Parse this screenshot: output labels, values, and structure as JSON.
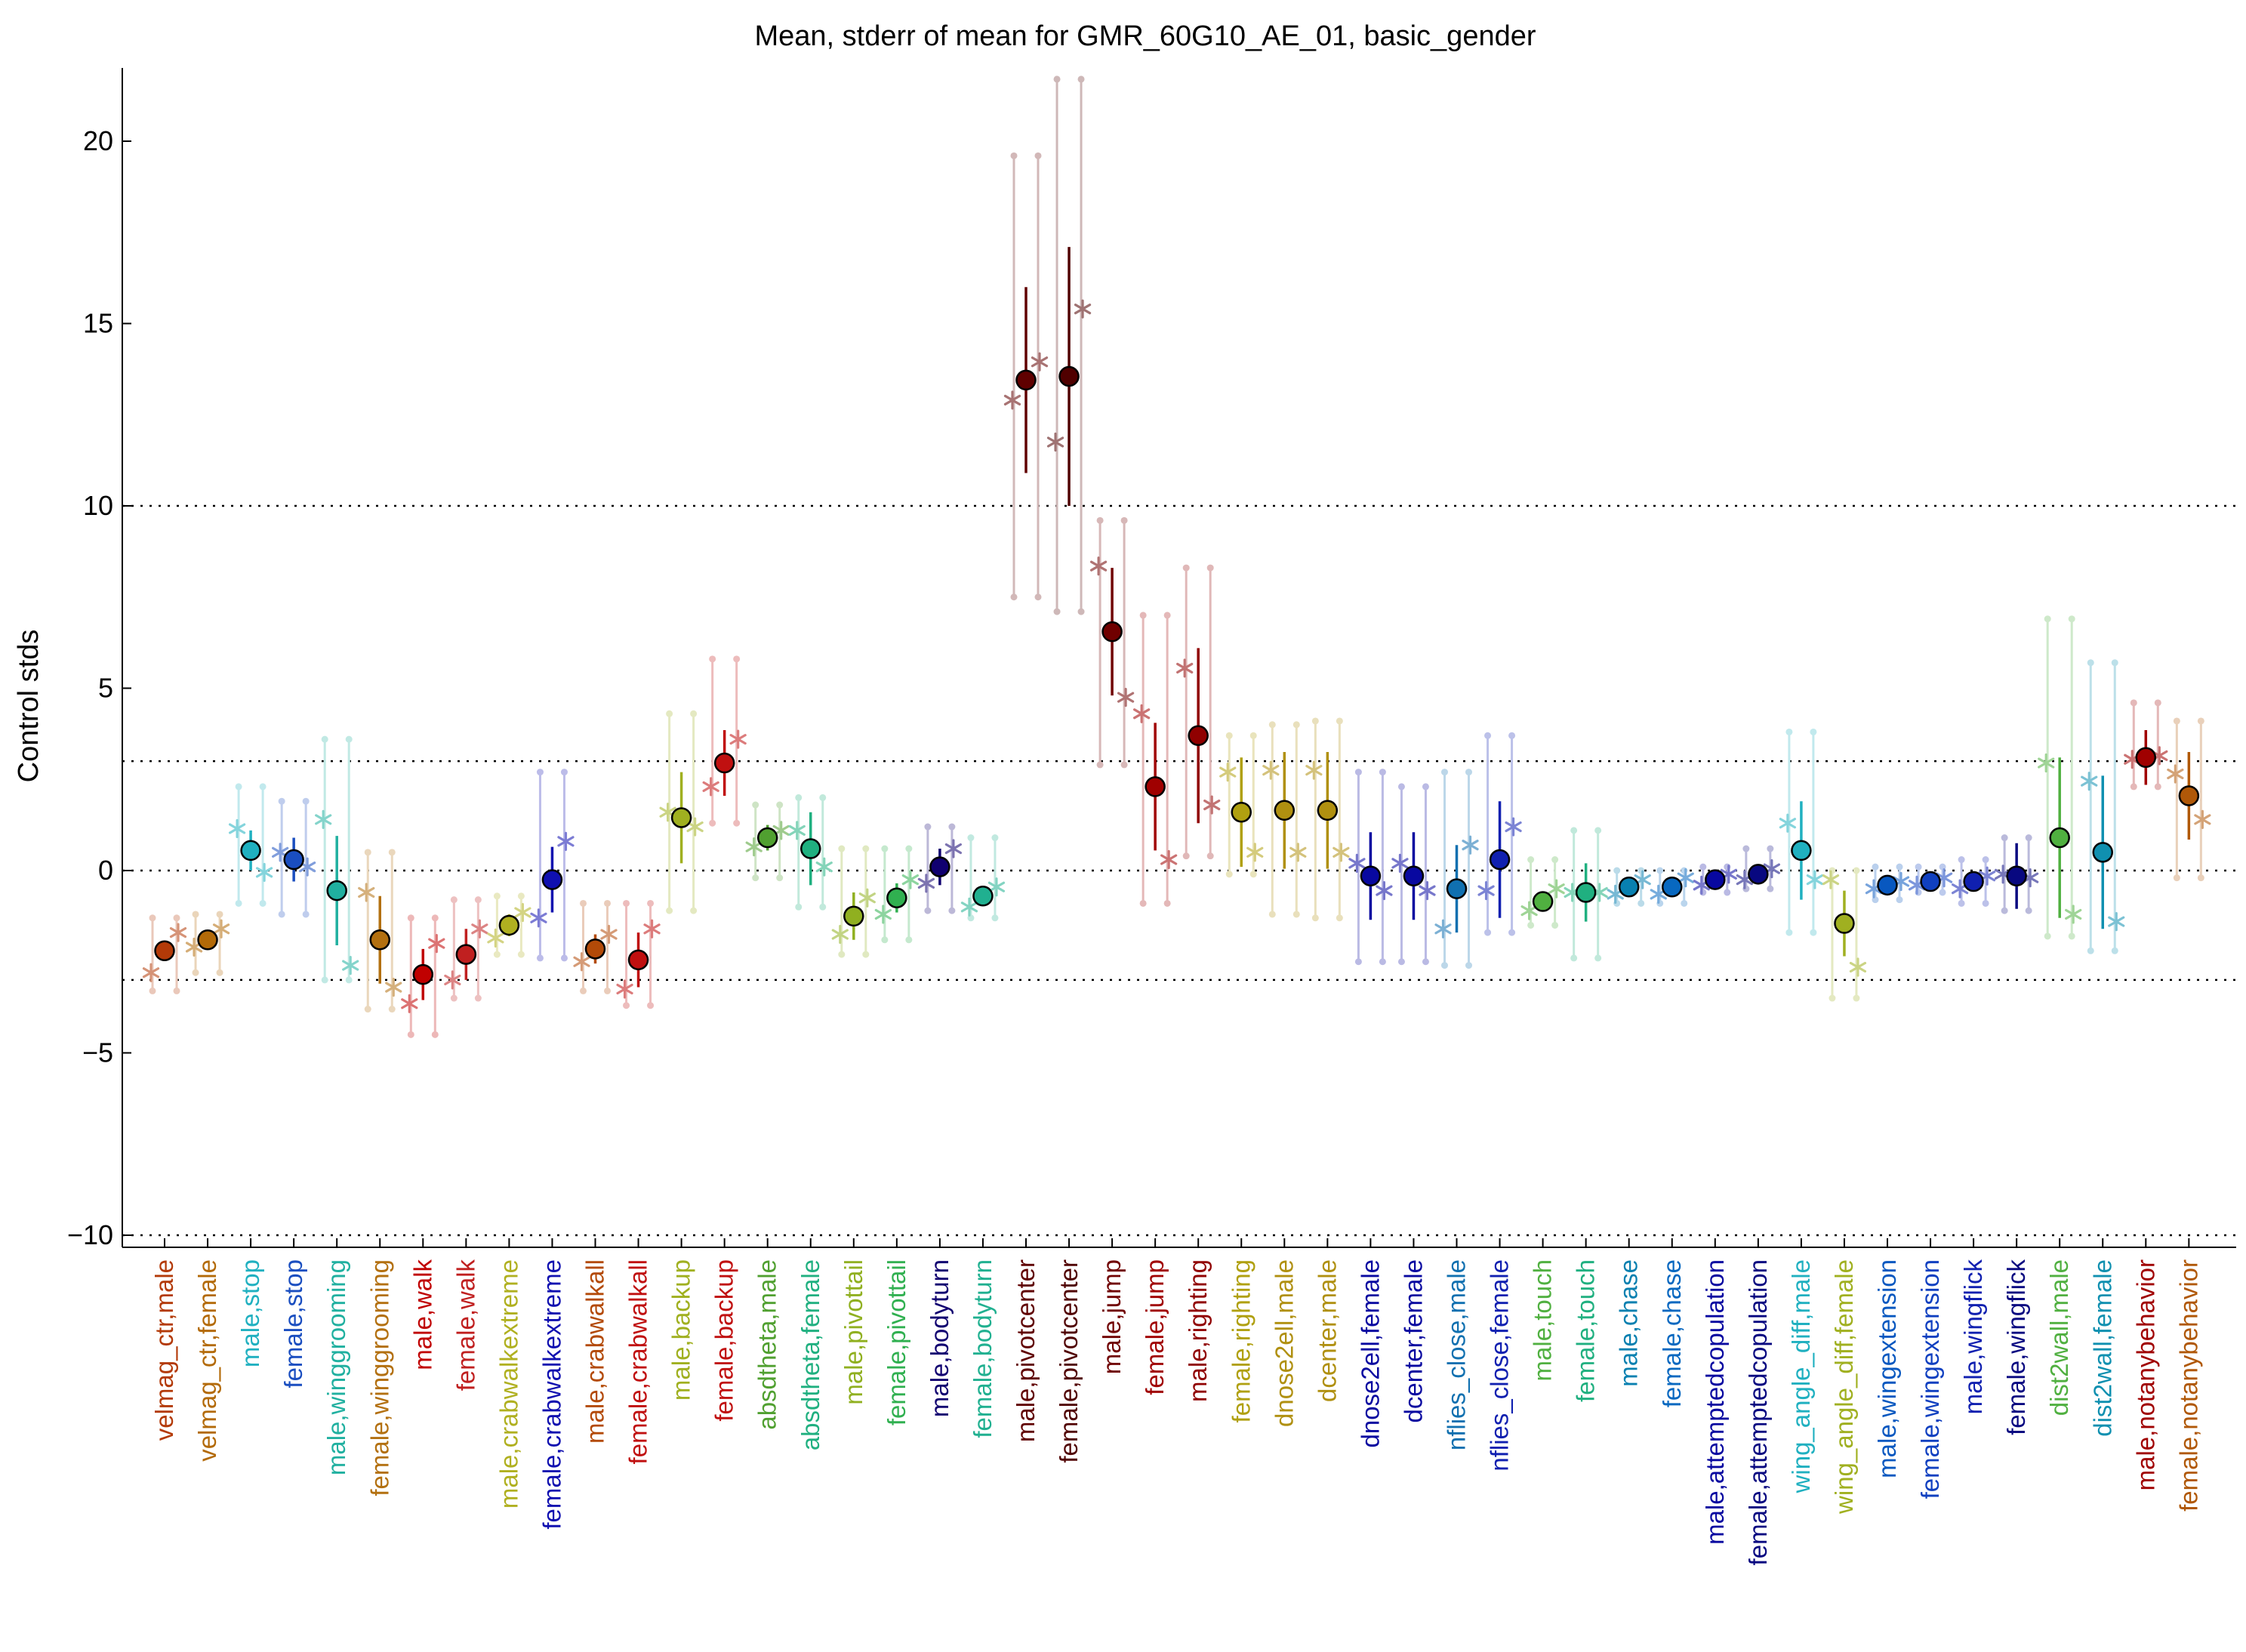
{
  "chart_data": {
    "type": "scatter",
    "title": "Mean, stderr of mean for GMR_60G10_AE_01, basic_gender",
    "xlabel": "",
    "ylabel": "Control stds",
    "ylim": [
      -10.3,
      22
    ],
    "yticks": [
      -10,
      -5,
      0,
      5,
      10,
      15,
      20
    ],
    "ytick_labels": [
      "−10",
      "−5",
      "0",
      "5",
      "10",
      "15",
      "20"
    ],
    "reference_lines": [
      -10,
      -3,
      0,
      3,
      10
    ],
    "grid": false,
    "legend": "none",
    "categories": [
      {
        "label": "velmag_ctr,male",
        "color": "#b33a08",
        "mean": -2.2,
        "sem": 0.25,
        "stars": [
          -2.8,
          -1.7
        ],
        "range": [
          -3.3,
          -1.3
        ]
      },
      {
        "label": "velmag_ctr,female",
        "color": "#b36a08",
        "mean": -1.9,
        "sem": 0.2,
        "stars": [
          -2.1,
          -1.6
        ],
        "range": [
          -2.8,
          -1.2
        ]
      },
      {
        "label": "male,stop",
        "color": "#20b0c0",
        "mean": 0.55,
        "sem": 0.55,
        "stars": [
          1.15,
          -0.05
        ],
        "range": [
          -0.9,
          2.3
        ]
      },
      {
        "label": "female,stop",
        "color": "#1a4ec0",
        "mean": 0.3,
        "sem": 0.6,
        "stars": [
          0.5,
          0.1
        ],
        "range": [
          -1.2,
          1.9
        ]
      },
      {
        "label": "male,winggrooming",
        "color": "#20b0a0",
        "mean": -0.55,
        "sem": 1.5,
        "stars": [
          1.4,
          -2.6
        ],
        "range": [
          -3.0,
          3.6
        ]
      },
      {
        "label": "female,winggrooming",
        "color": "#b37010",
        "mean": -1.9,
        "sem": 1.2,
        "stars": [
          -0.6,
          -3.2
        ],
        "range": [
          -3.8,
          0.5
        ]
      },
      {
        "label": "male,walk",
        "color": "#c00000",
        "mean": -2.85,
        "sem": 0.7,
        "stars": [
          -3.65,
          -2.0
        ],
        "range": [
          -4.5,
          -1.3
        ]
      },
      {
        "label": "female,walk",
        "color": "#c02020",
        "mean": -2.3,
        "sem": 0.7,
        "stars": [
          -3.0,
          -1.6
        ],
        "range": [
          -3.5,
          -0.8
        ]
      },
      {
        "label": "male,crabwalkextreme",
        "color": "#b0b020",
        "mean": -1.5,
        "sem": 0.3,
        "stars": [
          -1.85,
          -1.15
        ],
        "range": [
          -2.3,
          -0.7
        ]
      },
      {
        "label": "female,crabwalkextreme",
        "color": "#1010b0",
        "mean": -0.25,
        "sem": 0.9,
        "stars": [
          -1.3,
          0.8
        ],
        "range": [
          -2.4,
          2.7
        ]
      },
      {
        "label": "male,crabwalkall",
        "color": "#b34a08",
        "mean": -2.15,
        "sem": 0.4,
        "stars": [
          -2.5,
          -1.75
        ],
        "range": [
          -3.3,
          -0.9
        ]
      },
      {
        "label": "female,crabwalkall",
        "color": "#c01010",
        "mean": -2.45,
        "sem": 0.75,
        "stars": [
          -3.25,
          -1.6
        ],
        "range": [
          -3.7,
          -0.9
        ]
      },
      {
        "label": "male,backup",
        "color": "#a0b020",
        "mean": 1.45,
        "sem": 1.25,
        "stars": [
          1.6,
          1.2
        ],
        "range": [
          -1.1,
          4.3
        ]
      },
      {
        "label": "female,backup",
        "color": "#c01010",
        "mean": 2.95,
        "sem": 0.9,
        "stars": [
          2.3,
          3.6
        ],
        "range": [
          1.3,
          5.8
        ]
      },
      {
        "label": "absdtheta,male",
        "color": "#50a030",
        "mean": 0.9,
        "sem": 0.35,
        "stars": [
          0.65,
          1.1
        ],
        "range": [
          -0.2,
          1.8
        ]
      },
      {
        "label": "absdtheta,female",
        "color": "#20b080",
        "mean": 0.6,
        "sem": 1.0,
        "stars": [
          1.1,
          0.1
        ],
        "range": [
          -1.0,
          2.0
        ]
      },
      {
        "label": "male,pivottail",
        "color": "#90b020",
        "mean": -1.25,
        "sem": 0.65,
        "stars": [
          -1.75,
          -0.75
        ],
        "range": [
          -2.3,
          0.6
        ]
      },
      {
        "label": "female,pivottail",
        "color": "#30b050",
        "mean": -0.75,
        "sem": 0.4,
        "stars": [
          -1.2,
          -0.25
        ],
        "range": [
          -1.9,
          0.6
        ]
      },
      {
        "label": "male,bodyturn",
        "color": "#100070",
        "mean": 0.1,
        "sem": 0.5,
        "stars": [
          -0.35,
          0.6
        ],
        "range": [
          -1.1,
          1.2
        ]
      },
      {
        "label": "female,bodyturn",
        "color": "#20b090",
        "mean": -0.7,
        "sem": 0.25,
        "stars": [
          -1.0,
          -0.45
        ],
        "range": [
          -1.3,
          0.9
        ]
      },
      {
        "label": "male,pivotcenter",
        "color": "#600000",
        "mean": 13.45,
        "sem": 2.55,
        "stars": [
          12.9,
          13.95
        ],
        "range": [
          7.5,
          19.6
        ]
      },
      {
        "label": "female,pivotcenter",
        "color": "#500000",
        "mean": 13.55,
        "sem": 3.55,
        "stars": [
          11.75,
          15.4
        ],
        "range": [
          7.1,
          21.7
        ]
      },
      {
        "label": "male,jump",
        "color": "#700000",
        "mean": 6.55,
        "sem": 1.75,
        "stars": [
          8.35,
          4.75
        ],
        "range": [
          2.9,
          9.6
        ]
      },
      {
        "label": "female,jump",
        "color": "#a00000",
        "mean": 2.3,
        "sem": 1.75,
        "stars": [
          4.3,
          0.3
        ],
        "range": [
          -0.9,
          7.0
        ]
      },
      {
        "label": "male,righting",
        "color": "#900000",
        "mean": 3.7,
        "sem": 2.4,
        "stars": [
          5.55,
          1.8
        ],
        "range": [
          0.4,
          8.3
        ]
      },
      {
        "label": "female,righting",
        "color": "#b0a010",
        "mean": 1.6,
        "sem": 1.5,
        "stars": [
          2.7,
          0.5
        ],
        "range": [
          -0.1,
          3.7
        ]
      },
      {
        "label": "dnose2ell,male",
        "color": "#b09010",
        "mean": 1.65,
        "sem": 1.6,
        "stars": [
          2.75,
          0.5
        ],
        "range": [
          -1.2,
          4.0
        ]
      },
      {
        "label": "dcenter,male",
        "color": "#b09010",
        "mean": 1.65,
        "sem": 1.6,
        "stars": [
          2.75,
          0.5
        ],
        "range": [
          -1.3,
          4.1
        ]
      },
      {
        "label": "dnose2ell,female",
        "color": "#0808a0",
        "mean": -0.15,
        "sem": 1.2,
        "stars": [
          0.2,
          -0.55
        ],
        "range": [
          -2.5,
          2.7
        ]
      },
      {
        "label": "dcenter,female",
        "color": "#0808a0",
        "mean": -0.15,
        "sem": 1.2,
        "stars": [
          0.2,
          -0.55
        ],
        "range": [
          -2.5,
          2.3
        ]
      },
      {
        "label": "nflies_close,male",
        "color": "#1070b0",
        "mean": -0.5,
        "sem": 1.2,
        "stars": [
          -1.6,
          0.7
        ],
        "range": [
          -2.6,
          2.7
        ]
      },
      {
        "label": "nflies_close,female",
        "color": "#1020b0",
        "mean": 0.3,
        "sem": 1.6,
        "stars": [
          -0.55,
          1.2
        ],
        "range": [
          -1.7,
          3.7
        ]
      },
      {
        "label": "male,touch",
        "color": "#50b040",
        "mean": -0.85,
        "sem": 0.15,
        "stars": [
          -1.1,
          -0.5
        ],
        "range": [
          -1.5,
          0.3
        ]
      },
      {
        "label": "female,touch",
        "color": "#20b080",
        "mean": -0.6,
        "sem": 0.8,
        "stars": [
          -0.6,
          -0.6
        ],
        "range": [
          -2.4,
          1.1
        ]
      },
      {
        "label": "male,chase",
        "color": "#0880b0",
        "mean": -0.45,
        "sem": 0.2,
        "stars": [
          -0.65,
          -0.25
        ],
        "range": [
          -0.9,
          0.0
        ]
      },
      {
        "label": "female,chase",
        "color": "#0868c0",
        "mean": -0.45,
        "sem": 0.2,
        "stars": [
          -0.65,
          -0.2
        ],
        "range": [
          -0.9,
          0.0
        ]
      },
      {
        "label": "male,attemptedcopulation",
        "color": "#0808a0",
        "mean": -0.25,
        "sem": 0.2,
        "stars": [
          -0.4,
          -0.1
        ],
        "range": [
          -0.6,
          0.1
        ]
      },
      {
        "label": "female,attemptedcopulation",
        "color": "#080880",
        "mean": -0.1,
        "sem": 0.2,
        "stars": [
          -0.25,
          0.05
        ],
        "range": [
          -0.5,
          0.6
        ]
      },
      {
        "label": "wing_angle_diff,male",
        "color": "#20b0c0",
        "mean": 0.55,
        "sem": 1.35,
        "stars": [
          1.3,
          -0.25
        ],
        "range": [
          -1.7,
          3.8
        ]
      },
      {
        "label": "wing_angle_diff,female",
        "color": "#a0b020",
        "mean": -1.45,
        "sem": 0.9,
        "stars": [
          -0.25,
          -2.65
        ],
        "range": [
          -3.5,
          0.0
        ]
      },
      {
        "label": "male,wingextension",
        "color": "#0858c0",
        "mean": -0.4,
        "sem": 0.2,
        "stars": [
          -0.5,
          -0.3
        ],
        "range": [
          -0.8,
          0.1
        ]
      },
      {
        "label": "female,wingextension",
        "color": "#1040c0",
        "mean": -0.3,
        "sem": 0.2,
        "stars": [
          -0.4,
          -0.2
        ],
        "range": [
          -0.6,
          0.1
        ]
      },
      {
        "label": "male,wingflick",
        "color": "#1020b0",
        "mean": -0.3,
        "sem": 0.25,
        "stars": [
          -0.5,
          -0.15
        ],
        "range": [
          -0.9,
          0.3
        ]
      },
      {
        "label": "female,wingflick",
        "color": "#080880",
        "mean": -0.15,
        "sem": 0.9,
        "stars": [
          -0.1,
          -0.2
        ],
        "range": [
          -1.1,
          0.9
        ]
      },
      {
        "label": "dist2wall,male",
        "color": "#50b040",
        "mean": 0.9,
        "sem": 2.2,
        "stars": [
          2.95,
          -1.2
        ],
        "range": [
          -1.8,
          6.9
        ]
      },
      {
        "label": "dist2wall,female",
        "color": "#1090b0",
        "mean": 0.5,
        "sem": 2.1,
        "stars": [
          2.45,
          -1.4
        ],
        "range": [
          -2.2,
          5.7
        ]
      },
      {
        "label": "male,notanybehavior",
        "color": "#a00000",
        "mean": 3.1,
        "sem": 0.75,
        "stars": [
          3.05,
          3.15
        ],
        "range": [
          2.3,
          4.6
        ]
      },
      {
        "label": "female,notanybehavior",
        "color": "#b05808",
        "mean": 2.05,
        "sem": 1.2,
        "stars": [
          2.65,
          1.4
        ],
        "range": [
          -0.2,
          4.1
        ]
      }
    ]
  }
}
